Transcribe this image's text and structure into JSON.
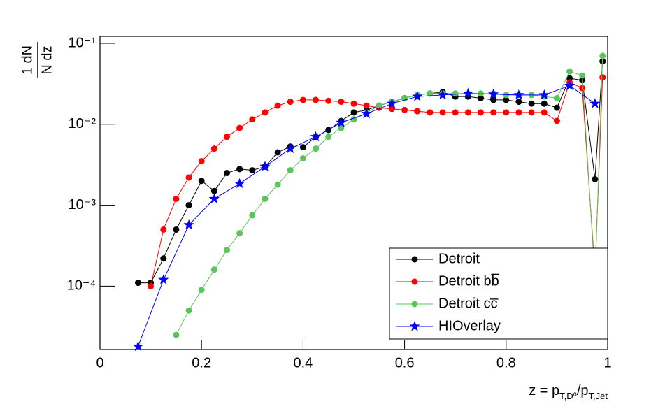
{
  "chart_data": {
    "type": "line",
    "log_y": true,
    "ylabel": {
      "numerator": "1 dN",
      "denominator": "N dz"
    },
    "xlabel_parts": [
      "z = p",
      "T,D⁰",
      "/p",
      "T,Jet"
    ],
    "xlim": [
      0,
      1
    ],
    "xticks": [
      0,
      0.2,
      0.4,
      0.6,
      0.8,
      1
    ],
    "ylim": [
      1.65e-05,
      0.122
    ],
    "yticks": [
      {
        "value": 0.0001,
        "label": "10⁻⁴"
      },
      {
        "value": 0.001,
        "label": "10⁻³"
      },
      {
        "value": 0.01,
        "label": "10⁻²"
      },
      {
        "value": 0.1,
        "label": "10⁻¹"
      }
    ],
    "legend": "bottom-right",
    "series": [
      {
        "name": "Detroit",
        "color": "#000000",
        "marker": "circle",
        "x": [
          0.075,
          0.1,
          0.125,
          0.15,
          0.175,
          0.2,
          0.225,
          0.25,
          0.275,
          0.3,
          0.325,
          0.35,
          0.375,
          0.4,
          0.425,
          0.45,
          0.475,
          0.5,
          0.525,
          0.55,
          0.575,
          0.6,
          0.625,
          0.65,
          0.675,
          0.7,
          0.725,
          0.75,
          0.775,
          0.8,
          0.825,
          0.85,
          0.875,
          0.9,
          0.925,
          0.95,
          0.975,
          0.99
        ],
        "values": [
          0.00011,
          0.00011,
          0.00022,
          0.0005,
          0.001,
          0.002,
          0.0015,
          0.0025,
          0.0028,
          0.0027,
          0.003,
          0.0045,
          0.0053,
          0.0052,
          0.007,
          0.0085,
          0.011,
          0.014,
          0.015,
          0.017,
          0.019,
          0.021,
          0.023,
          0.024,
          0.025,
          0.022,
          0.022,
          0.021,
          0.02,
          0.02,
          0.019,
          0.018,
          0.018,
          0.016,
          0.037,
          0.035,
          0.0021,
          0.06
        ]
      },
      {
        "name": "Detroit bb̅",
        "color": "#ff0000",
        "marker": "circle",
        "x": [
          0.075,
          0.1,
          0.125,
          0.15,
          0.175,
          0.2,
          0.225,
          0.25,
          0.275,
          0.3,
          0.325,
          0.35,
          0.375,
          0.4,
          0.425,
          0.45,
          0.475,
          0.5,
          0.525,
          0.55,
          0.575,
          0.6,
          0.625,
          0.65,
          0.675,
          0.7,
          0.725,
          0.75,
          0.775,
          0.8,
          0.825,
          0.85,
          0.875,
          0.9,
          0.925,
          0.95,
          0.975,
          0.99
        ],
        "values": [
          null,
          0.0001,
          0.0005,
          0.0012,
          0.0022,
          0.0035,
          0.005,
          0.007,
          0.009,
          0.0115,
          0.014,
          0.017,
          0.019,
          0.02,
          0.02,
          0.0195,
          0.019,
          0.018,
          0.017,
          0.016,
          0.0155,
          0.015,
          0.0145,
          0.014,
          0.014,
          0.014,
          0.014,
          0.014,
          0.014,
          0.014,
          0.014,
          0.014,
          0.014,
          0.011,
          0.033,
          0.028,
          0.00015,
          0.038
        ]
      },
      {
        "name": "Detroit cc̅",
        "color": "#5cc45c",
        "marker": "circle",
        "x": [
          0.075,
          0.1,
          0.125,
          0.15,
          0.175,
          0.2,
          0.225,
          0.25,
          0.275,
          0.3,
          0.325,
          0.35,
          0.375,
          0.4,
          0.425,
          0.45,
          0.475,
          0.5,
          0.525,
          0.55,
          0.575,
          0.6,
          0.625,
          0.65,
          0.675,
          0.7,
          0.725,
          0.75,
          0.775,
          0.8,
          0.825,
          0.85,
          0.875,
          0.9,
          0.925,
          0.95,
          0.975,
          0.99
        ],
        "values": [
          null,
          null,
          null,
          2.5e-05,
          5e-05,
          9e-05,
          0.00016,
          0.00028,
          0.00045,
          0.00075,
          0.0012,
          0.0018,
          0.0027,
          0.0038,
          0.005,
          0.007,
          0.009,
          0.0115,
          0.014,
          0.017,
          0.019,
          0.021,
          0.023,
          0.024,
          0.024,
          0.024,
          0.024,
          0.024,
          0.024,
          0.023,
          0.023,
          0.023,
          0.022,
          0.021,
          0.045,
          0.04,
          0.00012,
          0.07
        ]
      },
      {
        "name": "HIOverlay",
        "color": "#0000ff",
        "marker": "star",
        "x": [
          0.075,
          0.125,
          0.175,
          0.225,
          0.275,
          0.325,
          0.375,
          0.425,
          0.475,
          0.525,
          0.575,
          0.625,
          0.675,
          0.725,
          0.775,
          0.825,
          0.875,
          0.925,
          0.975
        ],
        "values": [
          1.8e-05,
          0.00012,
          0.00057,
          0.0012,
          0.00185,
          0.003,
          0.005,
          0.007,
          0.0105,
          0.0135,
          0.018,
          0.022,
          0.023,
          0.024,
          0.0235,
          0.023,
          0.023,
          0.03,
          0.018
        ]
      }
    ]
  }
}
